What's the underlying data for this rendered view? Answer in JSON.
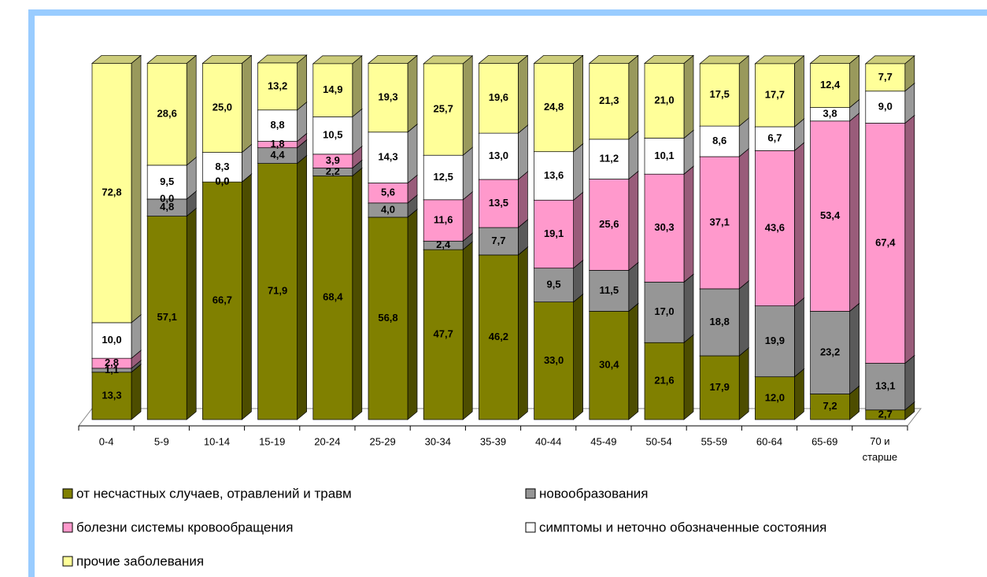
{
  "chart_data": {
    "type": "stacked-bar-3d",
    "categories": [
      "0-4",
      "5-9",
      "10-14",
      "15-19",
      "20-24",
      "25-29",
      "30-34",
      "35-39",
      "40-44",
      "45-49",
      "50-54",
      "55-59",
      "60-64",
      "65-69",
      "70 и старше"
    ],
    "legend": "bottom",
    "series": [
      {
        "name": "от несчастных случаев, отравлений и травм",
        "color": "#808000",
        "values": [
          13.3,
          57.1,
          66.7,
          71.9,
          68.4,
          56.8,
          47.7,
          46.2,
          33.0,
          30.4,
          21.6,
          17.9,
          12.0,
          7.2,
          2.7
        ],
        "value_labels": [
          "13,3",
          "57,1",
          "66,7",
          "71,9",
          "68,4",
          "56,8",
          "47,7",
          "46,2",
          "33,0",
          "30,4",
          "21,6",
          "17,9",
          "12,0",
          "7,2",
          "2,7"
        ]
      },
      {
        "name": "новообразования",
        "color": "#969696",
        "values": [
          1.1,
          4.8,
          0.0,
          4.4,
          2.2,
          4.0,
          2.4,
          7.7,
          9.5,
          11.5,
          17.0,
          18.8,
          19.9,
          23.2,
          13.1
        ],
        "value_labels": [
          "1,1",
          "4,8",
          "0,0",
          "4,4",
          "2,2",
          "4,0",
          "2,4",
          "7,7",
          "9,5",
          "11,5",
          "17,0",
          "18,8",
          "19,9",
          "23,2",
          "13,1"
        ]
      },
      {
        "name": "болезни системы кровообращения",
        "color": "#ff99cc",
        "values": [
          2.8,
          0.0,
          0.0,
          1.8,
          3.9,
          5.6,
          11.6,
          13.5,
          19.1,
          25.6,
          30.3,
          37.1,
          43.6,
          53.4,
          67.4
        ],
        "value_labels": [
          "2,8",
          "0,0",
          "0,0",
          "1,8",
          "3,9",
          "5,6",
          "11,6",
          "13,5",
          "19,1",
          "25,6",
          "30,3",
          "37,1",
          "43,6",
          "53,4",
          "67,4"
        ]
      },
      {
        "name": "симптомы и неточно обозначенные состояния",
        "color": "#ffffff",
        "values": [
          10.0,
          9.5,
          8.3,
          8.8,
          10.5,
          14.3,
          12.5,
          13.0,
          13.6,
          11.2,
          10.1,
          8.6,
          6.7,
          3.8,
          9.0
        ],
        "value_labels": [
          "10,0",
          "9,5",
          "8,3",
          "8,8",
          "10,5",
          "14,3",
          "12,5",
          "13,0",
          "13,6",
          "11,2",
          "10,1",
          "8,6",
          "6,7",
          "3,8",
          "9,0"
        ]
      },
      {
        "name": "прочие заболевания",
        "color": "#ffff99",
        "values": [
          72.8,
          28.6,
          25.0,
          13.2,
          14.9,
          19.3,
          25.7,
          19.6,
          24.8,
          21.3,
          21.0,
          17.5,
          17.7,
          12.4,
          7.7
        ],
        "value_labels": [
          "72,8",
          "28,6",
          "25,0",
          "13,2",
          "14,9",
          "19,3",
          "25,7",
          "19,6",
          "24,8",
          "21,3",
          "21,0",
          "17,5",
          "17,7",
          "12,4",
          "7,7"
        ]
      }
    ]
  }
}
